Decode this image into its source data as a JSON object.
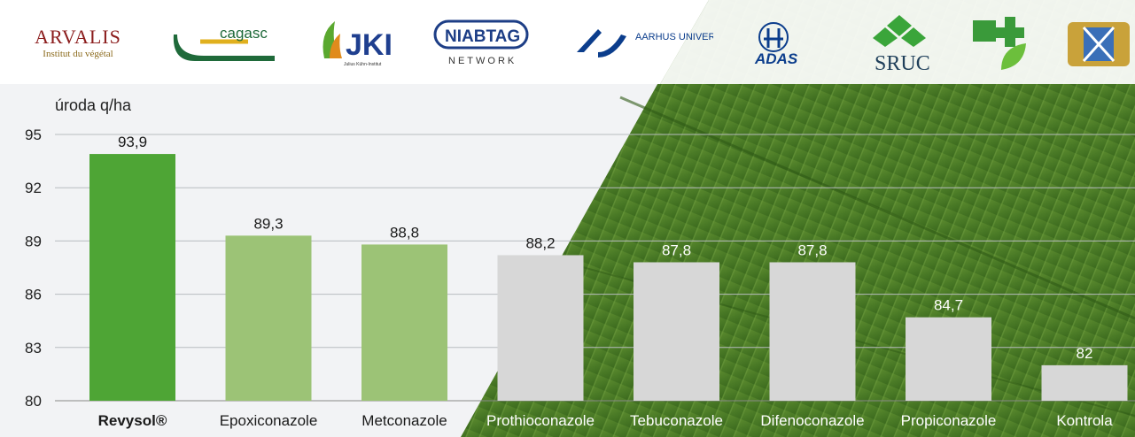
{
  "logos": [
    {
      "name": "ARVALIS",
      "sub": "Institut du végétal",
      "color": "#8b1c1c"
    },
    {
      "name": "cagasc",
      "sub": "",
      "color": "#1f6a3a"
    },
    {
      "name": "JKI",
      "sub": "Julius Kühn-Institut",
      "color": "#1f3f8f"
    },
    {
      "name": "NIABTAG",
      "sub": "NETWORK",
      "color": "#1d3e86"
    },
    {
      "name": "AARHUS UNIVERSITY",
      "sub": "",
      "color": "#0b3d8c"
    },
    {
      "name": "ADAS",
      "sub": "",
      "color": "#0b3d8c"
    },
    {
      "name": "SRUC",
      "sub": "",
      "color": "#1f3f5a"
    },
    {
      "name": "",
      "sub": "",
      "color": "#3a9a3a"
    },
    {
      "name": "",
      "sub": "",
      "color": "#b58a1c"
    }
  ],
  "colors": {
    "revysol": "#4ea535",
    "azole_light": "#9cc376",
    "gray": "#d7d7d7",
    "field_dark": "#3f6b22",
    "field_light": "#6e9a3c"
  },
  "chart_data": {
    "type": "bar",
    "ylabel": "úroda q/ha",
    "ylim": [
      80,
      95
    ],
    "yticks": [
      80,
      83,
      86,
      89,
      92,
      95
    ],
    "categories": [
      "Revysol®",
      "Epoxiconazole",
      "Metconazole",
      "Prothioconazole",
      "Tebuconazole",
      "Difenoconazole",
      "Propiconazole",
      "Kontrola"
    ],
    "values": [
      93.9,
      89.3,
      88.8,
      88.2,
      87.8,
      87.8,
      84.7,
      82
    ],
    "value_labels": [
      "93,9",
      "89,3",
      "88,8",
      "88,2",
      "87,8",
      "87,8",
      "84,7",
      "82"
    ],
    "grid": true
  }
}
